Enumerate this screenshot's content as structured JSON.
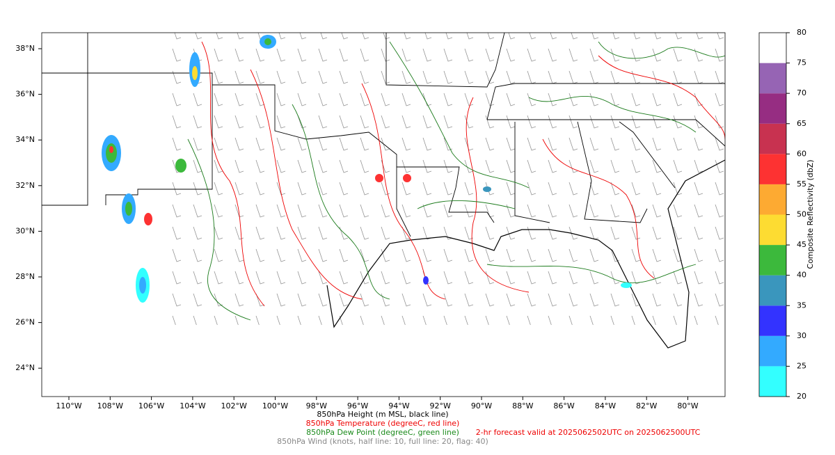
{
  "map": {
    "lat_labels": [
      "38°N",
      "36°N",
      "34°N",
      "32°N",
      "30°N",
      "28°N",
      "26°N",
      "24°N"
    ],
    "lon_labels": [
      "110°W",
      "108°W",
      "106°W",
      "104°W",
      "102°W",
      "100°W",
      "98°W",
      "96°W",
      "94°W",
      "92°W",
      "90°W",
      "88°W",
      "86°W",
      "84°W",
      "82°W",
      "80°W"
    ]
  },
  "colorbar": {
    "label": "Composite Reflectivity (dbZ)",
    "ticks": [
      20,
      25,
      30,
      35,
      40,
      45,
      50,
      55,
      60,
      65,
      70,
      75,
      80
    ],
    "colors": [
      "#33ffff",
      "#33aaff",
      "#3333ff",
      "#3a96bd",
      "#3cb93c",
      "#fddc32",
      "#fdaa32",
      "#fd3232",
      "#c83250",
      "#962d82",
      "#9664b4",
      "#ffffff"
    ]
  },
  "captions": {
    "height": "850hPa Height (m MSL, black line)",
    "temperature": "850hPa Temperature (degreeC, red line)",
    "dew_point": "850hPa Dew Point (degreeC, green line)",
    "wind": "850hPa Wind (knots, half line: 10, full line: 20, flag: 40)",
    "forecast": "2-hr forecast valid at 2025062502UTC on 2025062500UTC"
  }
}
